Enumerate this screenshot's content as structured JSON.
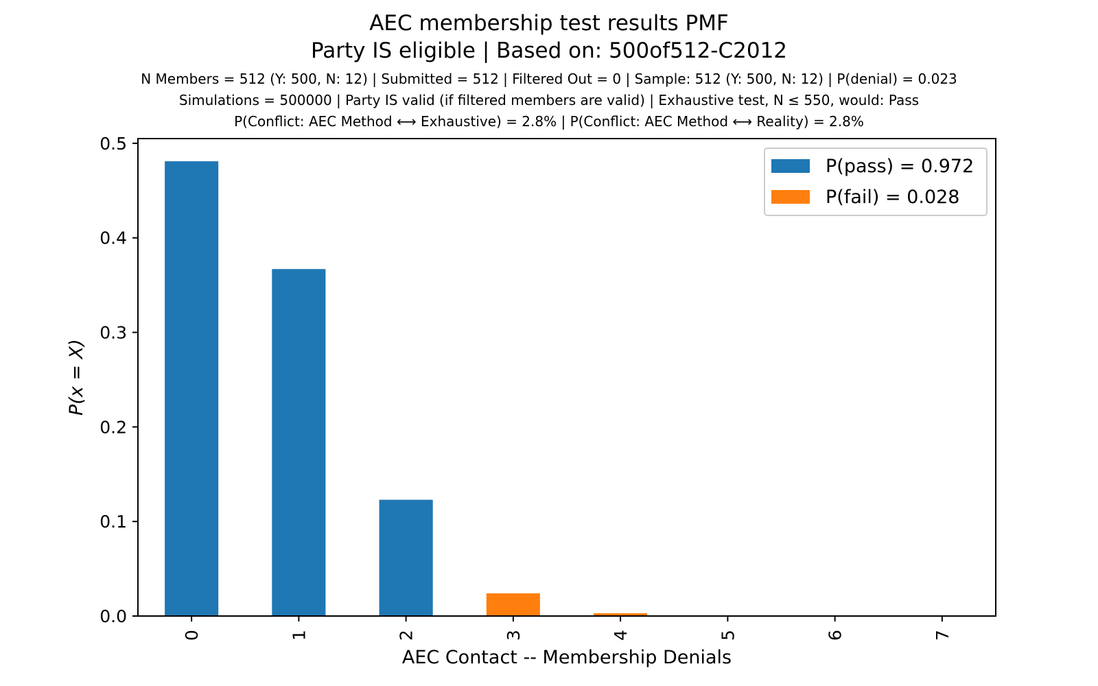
{
  "chart_data": {
    "type": "bar",
    "title": "AEC membership test results PMF",
    "subtitle": "Party IS eligible | Based on: 500of512-C2012",
    "info_lines": [
      "N Members = 512 (Y: 500, N: 12) | Submitted = 512 | Filtered Out = 0 | Sample: 512 (Y: 500, N: 12) | P(denial) = 0.023",
      "Simulations = 500000 | Party IS valid (if filtered members are valid) | Exhaustive test, N ≤ 550, would: Pass",
      "P(Conflict: AEC Method ⟷ Exhaustive) = 2.8% | P(Conflict: AEC Method ⟷ Reality) = 2.8%"
    ],
    "xlabel": "AEC Contact -- Membership Denials",
    "ylabel": "P(x = X)",
    "categories": [
      "0",
      "1",
      "2",
      "3",
      "4",
      "5",
      "6",
      "7"
    ],
    "values": [
      0.481,
      0.367,
      0.123,
      0.024,
      0.003,
      0.0,
      0.0,
      0.0
    ],
    "bar_groups": [
      "pass",
      "pass",
      "pass",
      "fail",
      "fail",
      "fail",
      "fail",
      "fail"
    ],
    "series": [
      {
        "name": "P(pass) = 0.972",
        "key": "pass",
        "color": "#1f77b4"
      },
      {
        "name": "P(fail) = 0.028",
        "key": "fail",
        "color": "#ff7f0e"
      }
    ],
    "ylim": [
      0,
      0.505
    ],
    "yticks": [
      "0.0",
      "0.1",
      "0.2",
      "0.3",
      "0.4",
      "0.5"
    ],
    "grid": false,
    "legend_position": "top-right"
  }
}
